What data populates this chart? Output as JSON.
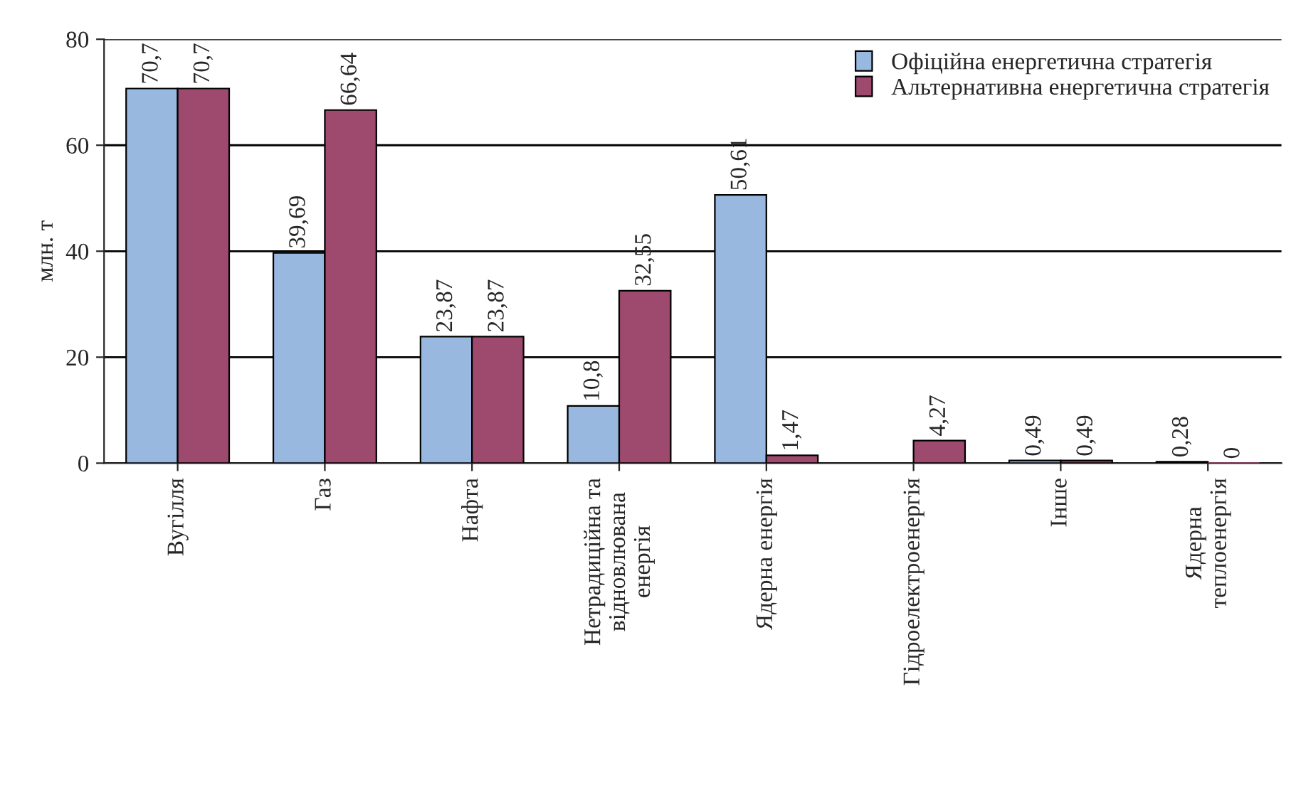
{
  "chart_data": {
    "type": "bar",
    "ylabel": "млн. т",
    "categories": [
      "Вугілля",
      "Газ",
      "Нафта",
      "Нетрадиційна та\nвідновлювана\nенергія",
      "Ядерна енергія",
      "Гідроелектроенергія",
      "Інше",
      "Ядерна\nтеплоенергія"
    ],
    "series": [
      {
        "name": "Офіційна енергетична стратегія",
        "color": "#99b8e0",
        "values": [
          70.7,
          39.69,
          23.87,
          10.8,
          50.61,
          null,
          0.49,
          0.28
        ],
        "value_labels": [
          "70,7",
          "39,69",
          "23,87",
          "10,8",
          "50,61",
          null,
          "0,49",
          "0,28"
        ]
      },
      {
        "name": "Альтернативна енергетична стратегія",
        "color": "#9e4a6e",
        "values": [
          70.7,
          66.64,
          23.87,
          32.55,
          1.47,
          4.27,
          0.49,
          0
        ],
        "value_labels": [
          "70,7",
          "66,64",
          "23,87",
          "32,55",
          "1,47",
          "4,27",
          "0,49",
          "0"
        ]
      }
    ],
    "ylim": [
      0,
      80
    ],
    "yticks": [
      0,
      20,
      40,
      60,
      80
    ],
    "grid": "y",
    "legend": "top right"
  }
}
